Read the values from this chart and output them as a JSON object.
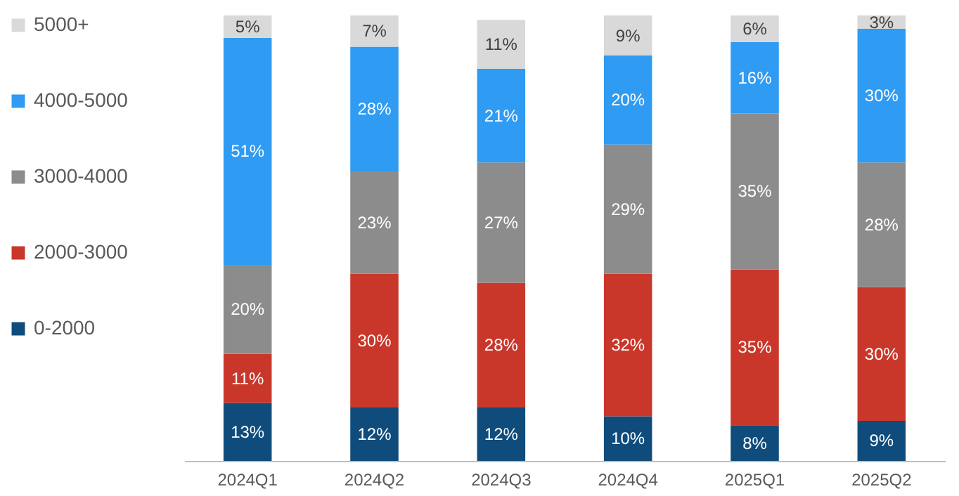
{
  "chart_data": {
    "type": "bar",
    "stacked": true,
    "legend": "left",
    "categories": [
      "2024Q1",
      "2024Q2",
      "2024Q3",
      "2024Q4",
      "2025Q1",
      "2025Q2"
    ],
    "series": [
      {
        "name": "0-2000",
        "color": "#0f4c7c",
        "values": [
          13,
          12,
          12,
          10,
          8,
          9
        ],
        "value_labels": [
          "13%",
          "12%",
          "12%",
          "10%",
          "8%",
          "9%"
        ]
      },
      {
        "name": "2000-3000",
        "color": "#c9372b",
        "values": [
          11,
          30,
          28,
          32,
          35,
          30
        ],
        "value_labels": [
          "11%",
          "30%",
          "28%",
          "32%",
          "35%",
          "30%"
        ]
      },
      {
        "name": "3000-4000",
        "color": "#8c8c8c",
        "values": [
          20,
          23,
          27,
          29,
          35,
          28
        ],
        "value_labels": [
          "20%",
          "23%",
          "27%",
          "29%",
          "35%",
          "28%"
        ]
      },
      {
        "name": "4000-5000",
        "color": "#2f9bf2",
        "values": [
          51,
          28,
          21,
          20,
          16,
          30
        ],
        "value_labels": [
          "51%",
          "28%",
          "21%",
          "20%",
          "16%",
          "30%"
        ]
      },
      {
        "name": "5000+",
        "color": "#d9d9d9",
        "values": [
          5,
          7,
          11,
          9,
          6,
          3
        ],
        "value_labels": [
          "5%",
          "7%",
          "11%",
          "9%",
          "6%",
          "3%"
        ]
      }
    ]
  }
}
